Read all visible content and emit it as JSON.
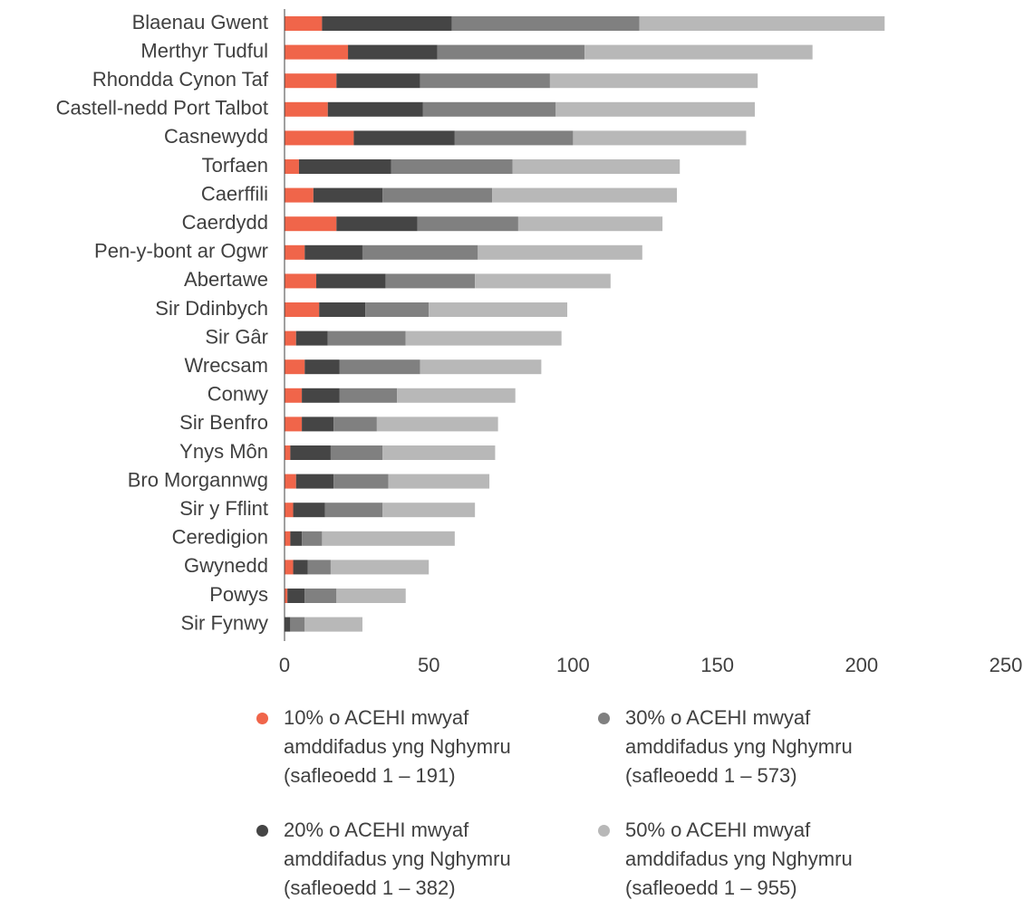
{
  "chart_data": {
    "type": "stacked_barh",
    "categories": [
      "Blaenau Gwent",
      "Merthyr Tudful",
      "Rhondda Cynon Taf",
      "Castell-nedd Port Talbot",
      "Casnewydd",
      "Torfaen",
      "Caerffili",
      "Caerdydd",
      "Pen-y-bont ar Ogwr",
      "Abertawe",
      "Sir Ddinbych",
      "Sir Gâr",
      "Wrecsam",
      "Conwy",
      "Sir Benfro",
      "Ynys Môn",
      "Bro Morgannwg",
      "Sir y Fflint",
      "Ceredigion",
      "Gwynedd",
      "Powys",
      "Sir Fynwy"
    ],
    "series": [
      {
        "name": "10% o ACEHI mwyaf amddifadus yng Nghymru (safleoedd 1 – 191)",
        "color": "#f0654a",
        "values": [
          13,
          22,
          18,
          15,
          24,
          5,
          10,
          18,
          7,
          11,
          12,
          4,
          7,
          6,
          6,
          2,
          4,
          3,
          2,
          3,
          1,
          0
        ]
      },
      {
        "name": "20% o ACEHI mwyaf amddifadus yng Nghymru (safleoedd 1 – 382)",
        "color": "#454545",
        "values": [
          45,
          31,
          29,
          33,
          35,
          32,
          24,
          28,
          20,
          24,
          16,
          11,
          12,
          13,
          11,
          14,
          13,
          11,
          4,
          5,
          6,
          2
        ]
      },
      {
        "name": "30% o ACEHI mwyaf amddifadus yng Nghymru (safleoedd 1 – 573)",
        "color": "#808080",
        "values": [
          65,
          51,
          45,
          46,
          41,
          42,
          38,
          35,
          40,
          31,
          22,
          27,
          28,
          20,
          15,
          18,
          19,
          20,
          7,
          8,
          11,
          5
        ]
      },
      {
        "name": "50% o ACEHI mwyaf amddifadus yng Nghymru (safleoedd 1 – 955)",
        "color": "#b8b8b8",
        "values": [
          85,
          79,
          72,
          69,
          60,
          58,
          64,
          50,
          57,
          47,
          48,
          54,
          42,
          41,
          42,
          39,
          35,
          32,
          46,
          34,
          24,
          20
        ]
      }
    ],
    "xlim": [
      0,
      250
    ],
    "xticks": [
      0,
      50,
      100,
      150,
      200,
      250
    ]
  }
}
